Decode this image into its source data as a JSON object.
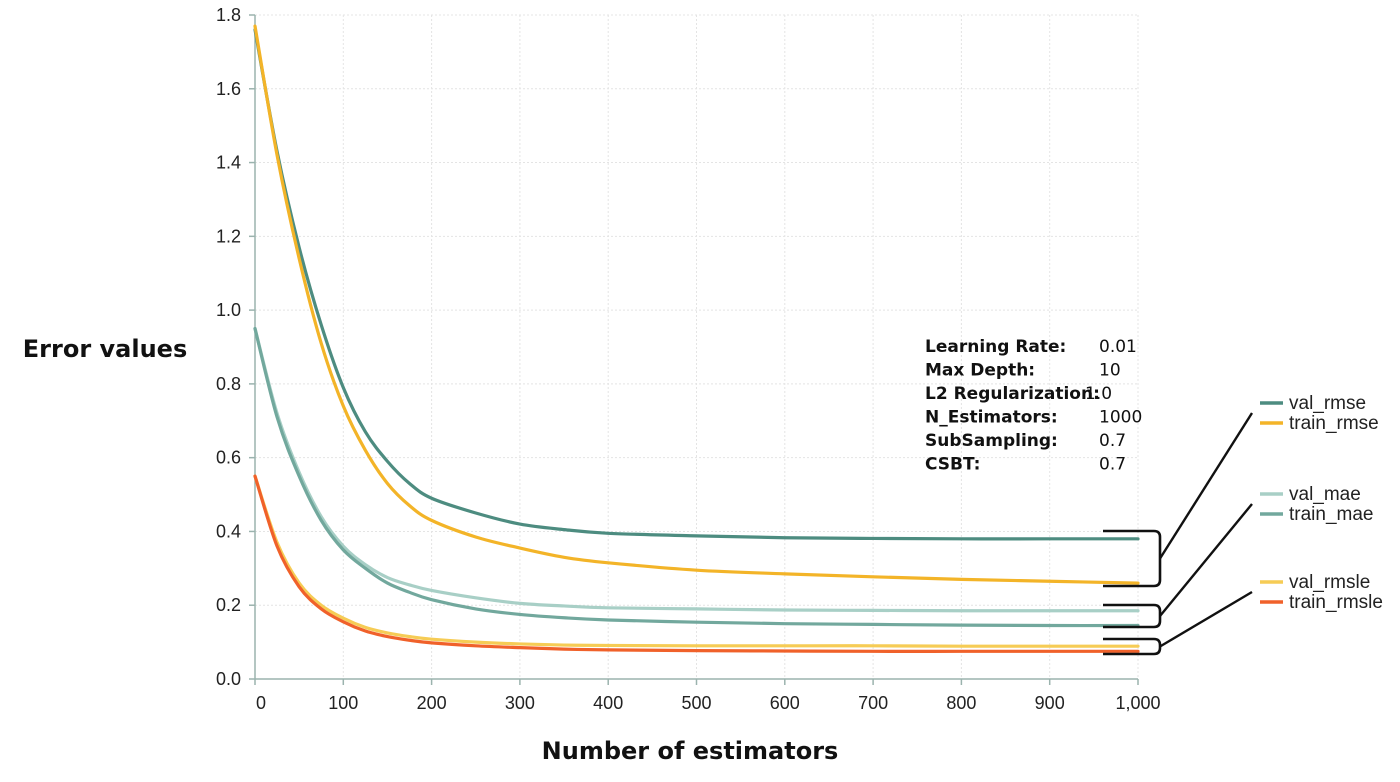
{
  "chart_data": {
    "type": "line",
    "xlabel": "Number of estimators",
    "ylabel": "Error values",
    "xlim": [
      0,
      1000
    ],
    "ylim": [
      0,
      1.8
    ],
    "x_ticks": [
      0,
      100,
      200,
      300,
      400,
      500,
      600,
      700,
      800,
      900,
      1000
    ],
    "x_tick_labels": [
      "0",
      "100",
      "200",
      "300",
      "400",
      "500",
      "600",
      "700",
      "800",
      "900",
      "1,000"
    ],
    "y_ticks": [
      0,
      0.2,
      0.4,
      0.6,
      0.8,
      1.0,
      1.2,
      1.4,
      1.6,
      1.8
    ],
    "y_tick_labels": [
      "0.0",
      "0.2",
      "0.4",
      "0.6",
      "0.8",
      "1.0",
      "1.2",
      "1.4",
      "1.6",
      "1.8"
    ],
    "grid": true,
    "legend_position": "right",
    "x": [
      0,
      25,
      50,
      75,
      100,
      125,
      150,
      175,
      200,
      250,
      300,
      350,
      400,
      500,
      600,
      700,
      800,
      900,
      1000
    ],
    "series": [
      {
        "name": "val_rmse",
        "color": "#4d8c80",
        "values": [
          1.76,
          1.43,
          1.17,
          0.96,
          0.79,
          0.67,
          0.59,
          0.53,
          0.49,
          0.45,
          0.42,
          0.405,
          0.395,
          0.388,
          0.383,
          0.381,
          0.38,
          0.38,
          0.38
        ]
      },
      {
        "name": "train_rmse",
        "color": "#f3b428",
        "values": [
          1.77,
          1.42,
          1.14,
          0.91,
          0.74,
          0.62,
          0.53,
          0.47,
          0.43,
          0.385,
          0.355,
          0.33,
          0.315,
          0.295,
          0.285,
          0.277,
          0.27,
          0.265,
          0.26
        ]
      },
      {
        "name": "val_mae",
        "color": "#a8cfc6",
        "values": [
          0.95,
          0.72,
          0.56,
          0.44,
          0.36,
          0.31,
          0.275,
          0.255,
          0.24,
          0.22,
          0.205,
          0.198,
          0.193,
          0.19,
          0.187,
          0.186,
          0.185,
          0.185,
          0.185
        ]
      },
      {
        "name": "train_mae",
        "color": "#72a89d",
        "values": [
          0.95,
          0.71,
          0.55,
          0.43,
          0.35,
          0.3,
          0.26,
          0.235,
          0.215,
          0.19,
          0.175,
          0.166,
          0.16,
          0.154,
          0.15,
          0.148,
          0.146,
          0.145,
          0.145
        ]
      },
      {
        "name": "val_rmsle",
        "color": "#f6cc55",
        "values": [
          0.55,
          0.37,
          0.26,
          0.2,
          0.165,
          0.14,
          0.125,
          0.115,
          0.108,
          0.1,
          0.095,
          0.092,
          0.091,
          0.09,
          0.09,
          0.09,
          0.089,
          0.089,
          0.089
        ]
      },
      {
        "name": "train_rmsle",
        "color": "#f0612a",
        "values": [
          0.55,
          0.36,
          0.25,
          0.19,
          0.155,
          0.13,
          0.115,
          0.105,
          0.098,
          0.09,
          0.085,
          0.081,
          0.079,
          0.077,
          0.076,
          0.075,
          0.075,
          0.075,
          0.075
        ]
      }
    ],
    "params": [
      {
        "key": "Learning Rate:",
        "value": "0.01"
      },
      {
        "key": "Max Depth:",
        "value": "10"
      },
      {
        "key": "L2 Regularization:",
        "value": "1.0"
      },
      {
        "key": "N_Estimators:",
        "value": "1000"
      },
      {
        "key": "SubSampling:",
        "value": "0.7"
      },
      {
        "key": "CSBT:",
        "value": "0.7"
      }
    ]
  }
}
